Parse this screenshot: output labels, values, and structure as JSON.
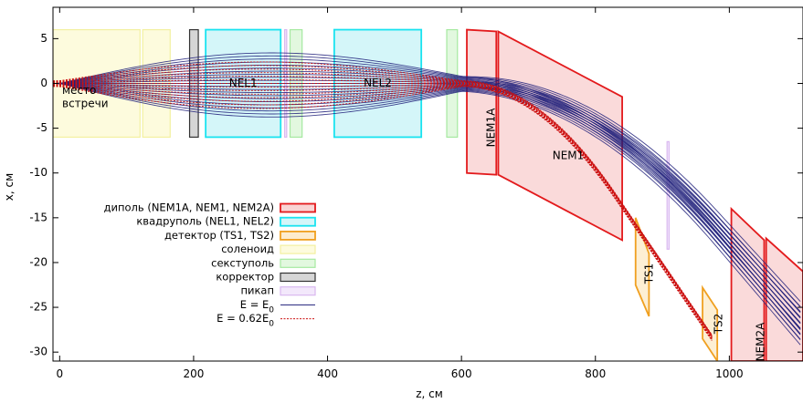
{
  "chart_data": {
    "type": "diagram",
    "xlabel": "z, см",
    "ylabel": "x, см",
    "xlim": [
      -10,
      1110
    ],
    "ylim": [
      -31,
      8.5
    ],
    "xticks": [
      0,
      200,
      400,
      600,
      800,
      1000
    ],
    "yticks": [
      5,
      0,
      -5,
      -10,
      -15,
      -20,
      -25,
      -30
    ],
    "grid": false,
    "legend_position": "left-middle",
    "elements": [
      {
        "kind": "solenoid",
        "label": "место\nвстречи",
        "z": [
          -10,
          120
        ],
        "x": [
          -6,
          6
        ]
      },
      {
        "kind": "solenoid",
        "label": "",
        "z": [
          124,
          165
        ],
        "x": [
          -6,
          6
        ]
      },
      {
        "kind": "corrector",
        "label": "",
        "z": [
          194,
          207
        ],
        "x": [
          -6,
          6
        ]
      },
      {
        "kind": "quadrupole",
        "label": "NEL1",
        "z": [
          218,
          330
        ],
        "x": [
          -6,
          6
        ]
      },
      {
        "kind": "pickup",
        "label": "",
        "z": [
          336,
          339
        ],
        "x": [
          -6,
          6
        ]
      },
      {
        "kind": "sextupole",
        "label": "",
        "z": [
          344,
          362
        ],
        "x": [
          -6,
          6
        ]
      },
      {
        "kind": "quadrupole",
        "label": "NEL2",
        "z": [
          410,
          540
        ],
        "x": [
          -6,
          6
        ]
      },
      {
        "kind": "sextupole",
        "label": "",
        "z": [
          578,
          594
        ],
        "x": [
          -6,
          6
        ]
      },
      {
        "kind": "dipole",
        "label": "NEM1A",
        "poly": [
          [
            608,
            6
          ],
          [
            652,
            5.8
          ],
          [
            652,
            -10.2
          ],
          [
            608,
            -10
          ]
        ]
      },
      {
        "kind": "dipole",
        "label": "NEM1",
        "poly": [
          [
            655,
            5.8
          ],
          [
            840,
            -1.5
          ],
          [
            840,
            -17.5
          ],
          [
            655,
            -10.2
          ]
        ]
      },
      {
        "kind": "pickup",
        "label": "",
        "poly": [
          [
            907,
            -6.5
          ],
          [
            910,
            -6.5
          ],
          [
            910,
            -18.5
          ],
          [
            907,
            -18.5
          ]
        ]
      },
      {
        "kind": "detector",
        "label": "TS1",
        "poly": [
          [
            860,
            -15
          ],
          [
            880,
            -19
          ],
          [
            880,
            -26
          ],
          [
            860,
            -22.5
          ]
        ]
      },
      {
        "kind": "detector",
        "label": "TS2",
        "poly": [
          [
            960,
            -22.8
          ],
          [
            982,
            -25.3
          ],
          [
            982,
            -31
          ],
          [
            960,
            -28.5
          ]
        ]
      },
      {
        "kind": "dipole",
        "label": "NEM2A",
        "poly": [
          [
            1003,
            -14
          ],
          [
            1052,
            -17.5
          ],
          [
            1052,
            -31
          ],
          [
            1003,
            -31
          ]
        ]
      },
      {
        "kind": "dipole",
        "label": "",
        "poly": [
          [
            1055,
            -17.3
          ],
          [
            1110,
            -21
          ],
          [
            1110,
            -31
          ],
          [
            1055,
            -31
          ]
        ]
      }
    ],
    "series": [
      {
        "name": "E = E0",
        "kind": "nominal-energy",
        "color": "#1f1f7a"
      },
      {
        "name": "E = 0.62E0",
        "kind": "low-energy",
        "color": "#cc1111"
      }
    ],
    "legend": [
      {
        "key": "dipole",
        "label": "диполь (NEM1A, NEM1, NEM2A)"
      },
      {
        "key": "quadrupole",
        "label": "квадруполь (NEL1, NEL2)"
      },
      {
        "key": "detector",
        "label": "детектор (TS1, TS2)"
      },
      {
        "key": "solenoid",
        "label": "соленоид"
      },
      {
        "key": "sextupole",
        "label": "секступоль"
      },
      {
        "key": "corrector",
        "label": "корректор"
      },
      {
        "key": "pickup",
        "label": "пикап"
      },
      {
        "key": "e0",
        "label": "E = E",
        "sub": "0"
      },
      {
        "key": "e062",
        "label": "E = 0.62E",
        "sub": "0"
      }
    ]
  },
  "colors": {
    "dipole_stroke": "#e31a1c",
    "dipole_fill": "#f9d4d4",
    "quadrupole_stroke": "#19e3f0",
    "quadrupole_fill": "#d4f6f9",
    "detector_stroke": "#f0a020",
    "detector_fill": "#fdeccd",
    "solenoid_stroke": "#f3f0a0",
    "solenoid_fill": "#fdfbdd",
    "sextupole_stroke": "#a6e9a0",
    "sextupole_fill": "#e2f8df",
    "corrector_stroke": "#333333",
    "corrector_fill": "#d6d6d6",
    "pickup_stroke": "#d9b8f0",
    "pickup_fill": "#f3e8fb",
    "track_e0": "#1f1f7a",
    "track_e062": "#cc1111"
  }
}
